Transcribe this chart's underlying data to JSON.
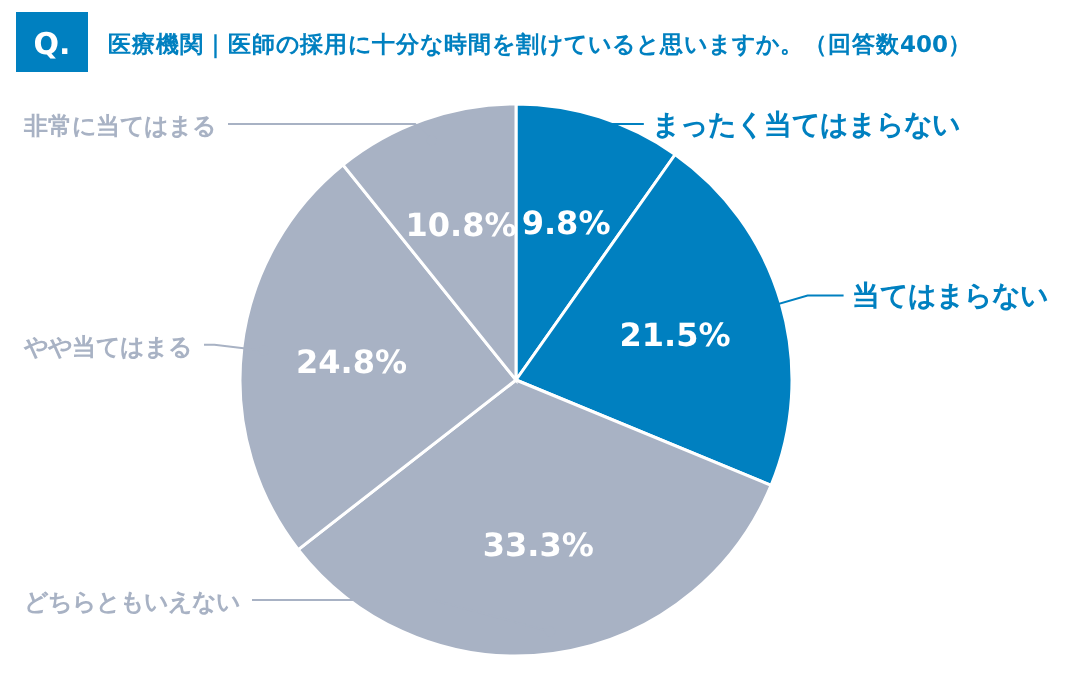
{
  "chart_data": {
    "type": "pie",
    "title": "医療機関｜医師の採用に十分な時間を割けていると思いますか。（回答数400）",
    "annotations": [
      "Q."
    ],
    "categories": [
      "まったく当てはまらない",
      "当てはまらない",
      "どちらともいえない",
      "やや当てはまる",
      "非常に当てはまる"
    ],
    "values": [
      9.8,
      21.5,
      33.3,
      24.8,
      10.8
    ],
    "colors": [
      "#0080c0",
      "#0080c0",
      "#a8b2c4",
      "#a8b2c4",
      "#a8b2c4"
    ],
    "value_labels": [
      "9.8%",
      "21.5%",
      "33.3%",
      "24.8%",
      "10.8%"
    ],
    "legend": false
  }
}
